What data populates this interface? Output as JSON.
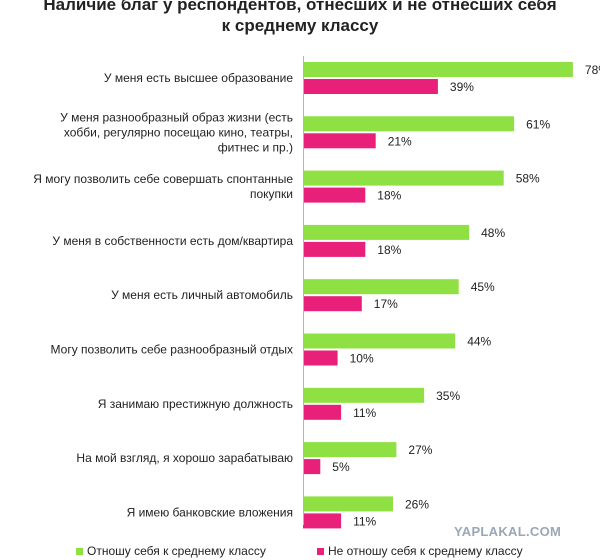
{
  "title_lines": [
    "Наличие благ у респондентов, отнесших и не отнесших себя",
    "к среднему классу"
  ],
  "watermark": "YAPLAKAL.COM",
  "colors": {
    "green": "#8ee043",
    "pink": "#e8207a"
  },
  "chart_data": {
    "type": "bar",
    "orientation": "horizontal",
    "title": "Наличие благ у респондентов, отнесших и не отнесших себя к среднему классу",
    "categories": [
      [
        "У меня есть высшее образование"
      ],
      [
        "У меня разнообразный образ жизни (есть",
        "хобби, регулярно посещаю кино, театры,",
        "фитнес и пр.)"
      ],
      [
        "Я могу позволить себе совершать спонтанные",
        "покупки"
      ],
      [
        "У меня в собственности есть дом/квартира"
      ],
      [
        "У меня есть личный автомобиль"
      ],
      [
        "Могу позволить себе разнообразный отдых"
      ],
      [
        "Я занимаю престижную должность"
      ],
      [
        "На мой взгляд, я хорошо зарабатываю"
      ],
      [
        "Я имею банковские вложения"
      ]
    ],
    "series": [
      {
        "name": "Отношу себя к среднему классу",
        "color": "#8ee043",
        "values": [
          78,
          61,
          58,
          48,
          45,
          44,
          35,
          27,
          26
        ]
      },
      {
        "name": "Не отношу себя к среднему классу",
        "color": "#e8207a",
        "values": [
          39,
          21,
          18,
          18,
          17,
          10,
          11,
          5,
          11
        ]
      }
    ],
    "value_suffix": "%",
    "xlim": [
      0,
      100
    ],
    "legend_position": "bottom"
  }
}
